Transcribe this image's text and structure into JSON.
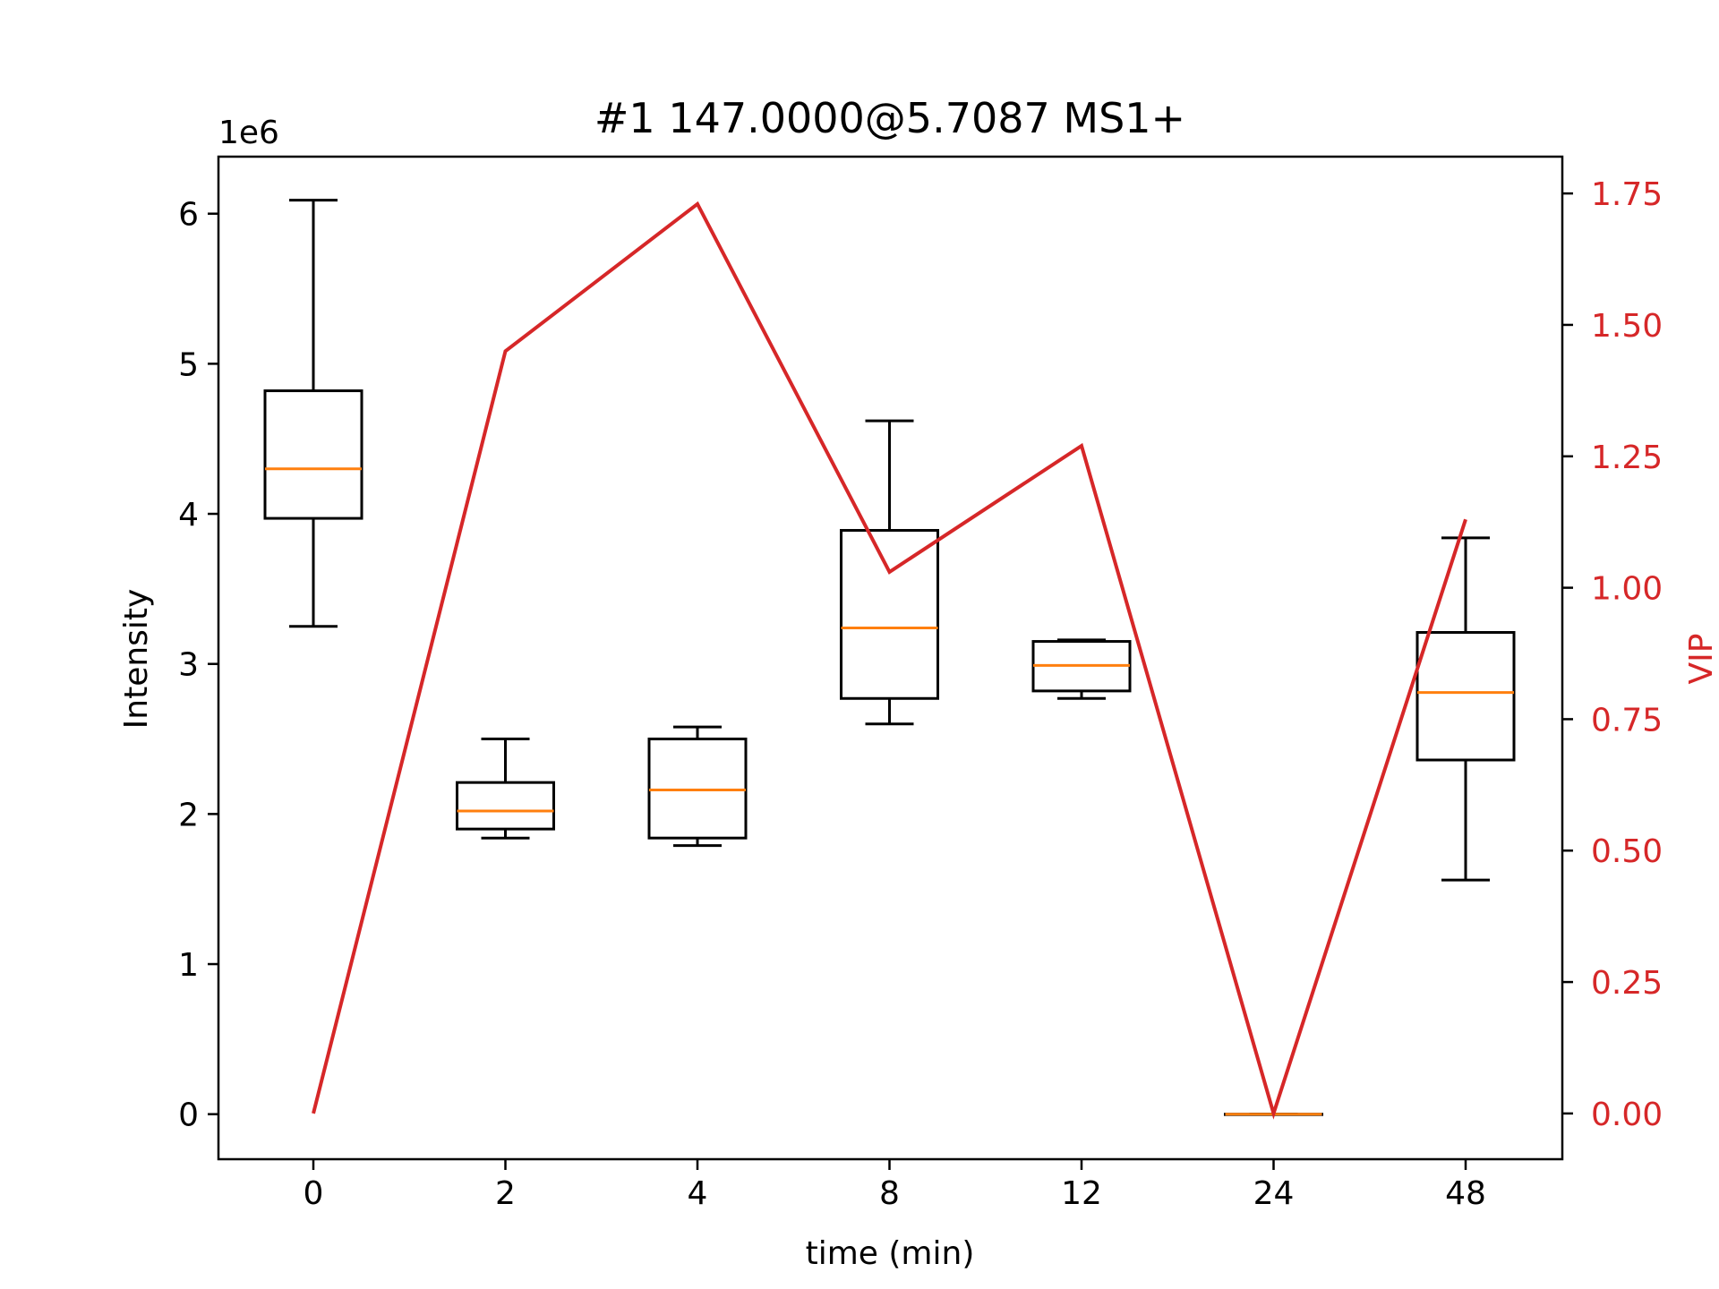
{
  "chart_data": {
    "type": "box",
    "title": "#1 147.0000@5.7087 MS1+",
    "xlabel": "time (min)",
    "ylabel": "Intensity",
    "y_offset_label": "1e6",
    "ylim": [
      -0.3,
      6.38
    ],
    "y_ticks": [
      0,
      1,
      2,
      3,
      4,
      5,
      6
    ],
    "categories": [
      "0",
      "2",
      "4",
      "8",
      "12",
      "24",
      "48"
    ],
    "boxes": [
      {
        "category": "0",
        "whisker_low": 3.25,
        "q1": 3.97,
        "median": 4.3,
        "q3": 4.82,
        "whisker_high": 6.09
      },
      {
        "category": "2",
        "whisker_low": 1.84,
        "q1": 1.9,
        "median": 2.02,
        "q3": 2.21,
        "whisker_high": 2.5
      },
      {
        "category": "4",
        "whisker_low": 1.79,
        "q1": 1.84,
        "median": 2.16,
        "q3": 2.5,
        "whisker_high": 2.58
      },
      {
        "category": "8",
        "whisker_low": 2.6,
        "q1": 2.77,
        "median": 3.24,
        "q3": 3.89,
        "whisker_high": 4.62
      },
      {
        "category": "12",
        "whisker_low": 2.77,
        "q1": 2.82,
        "median": 2.99,
        "q3": 3.15,
        "whisker_high": 3.16
      },
      {
        "category": "24",
        "whisker_low": 0.0,
        "q1": 0.0,
        "median": 0.0,
        "q3": 0.0,
        "whisker_high": 0.0
      },
      {
        "category": "48",
        "whisker_low": 1.56,
        "q1": 2.36,
        "median": 2.81,
        "q3": 3.21,
        "whisker_high": 3.84
      }
    ],
    "secondary_axis": {
      "label": "VIP",
      "ylim": [
        -0.087,
        1.82
      ],
      "ticks": [
        "0.00",
        "0.25",
        "0.50",
        "0.75",
        "1.00",
        "1.25",
        "1.50",
        "1.75"
      ],
      "series": {
        "name": "VIP",
        "type": "line",
        "values": [
          0.0,
          1.45,
          1.73,
          1.03,
          1.27,
          0.0,
          1.13
        ]
      }
    },
    "colors": {
      "box": "#000000",
      "median": "#ff7f0e",
      "vip_line": "#d62728",
      "vip_axis": "#d62728"
    }
  }
}
